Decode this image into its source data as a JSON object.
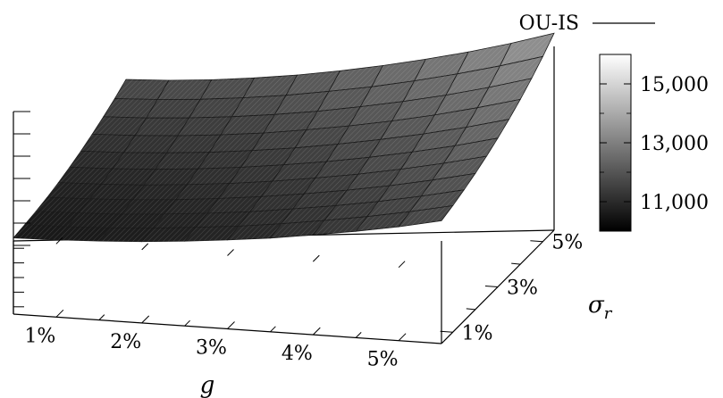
{
  "chart_data": {
    "type": "surface3d",
    "title": "",
    "legend": {
      "entries": [
        {
          "label": "OU-IS",
          "style": "line",
          "color": "#000000"
        }
      ],
      "placement": "top-right"
    },
    "x_axis": {
      "label": "g",
      "ticks": [
        "1%",
        "2%",
        "3%",
        "4%",
        "5%"
      ],
      "range": [
        0.5,
        5.5
      ],
      "unit": "%"
    },
    "y_axis": {
      "label": "σ",
      "label_subscript": "r",
      "ticks": [
        "1%",
        "3%",
        "5%"
      ],
      "range": [
        0.5,
        5.5
      ],
      "unit": "%"
    },
    "z_axis": {
      "ticks": [],
      "range": [
        10000,
        16000
      ],
      "tick_labels_visible": false
    },
    "colorbar": {
      "ticks": [
        "11,000",
        "13,000",
        "15,000"
      ],
      "range": [
        10000,
        16000
      ],
      "colormap": "grayscale"
    },
    "grid_x": [
      0.5,
      1.0,
      1.5,
      2.0,
      2.5,
      3.0,
      3.5,
      4.0,
      4.5,
      5.0,
      5.5
    ],
    "grid_y": [
      0.5,
      1.0,
      1.5,
      2.0,
      2.5,
      3.0,
      3.5,
      4.0,
      4.5,
      5.0,
      5.5
    ],
    "z_grid": [
      [
        10090,
        10120,
        10170,
        10240,
        10340,
        10460,
        10600,
        10780,
        10970,
        11190,
        11450
      ],
      [
        10140,
        10170,
        10220,
        10300,
        10410,
        10530,
        10690,
        10870,
        11070,
        11300,
        11560
      ],
      [
        10200,
        10240,
        10290,
        10380,
        10490,
        10620,
        10790,
        10970,
        11180,
        11420,
        11690
      ],
      [
        10280,
        10320,
        10380,
        10470,
        10590,
        10730,
        10900,
        11090,
        11310,
        11560,
        11840
      ],
      [
        10380,
        10420,
        10480,
        10580,
        10700,
        10850,
        11030,
        11230,
        11460,
        11720,
        12010
      ],
      [
        10500,
        10540,
        10610,
        10710,
        10840,
        11000,
        11180,
        11390,
        11630,
        11900,
        12210
      ],
      [
        10640,
        10680,
        10760,
        10860,
        11000,
        11160,
        11360,
        11580,
        11830,
        12110,
        12430
      ],
      [
        10800,
        10850,
        10930,
        11040,
        11180,
        11360,
        11560,
        11790,
        12050,
        12350,
        12680
      ],
      [
        10980,
        11030,
        11120,
        11240,
        11390,
        11570,
        11790,
        12030,
        12300,
        12610,
        12960
      ],
      [
        11180,
        11240,
        11330,
        11460,
        11620,
        11820,
        12040,
        12300,
        12590,
        12910,
        13270
      ],
      [
        11410,
        11470,
        11570,
        11710,
        11880,
        12090,
        12330,
        12600,
        12900,
        13240,
        13620
      ]
    ]
  }
}
